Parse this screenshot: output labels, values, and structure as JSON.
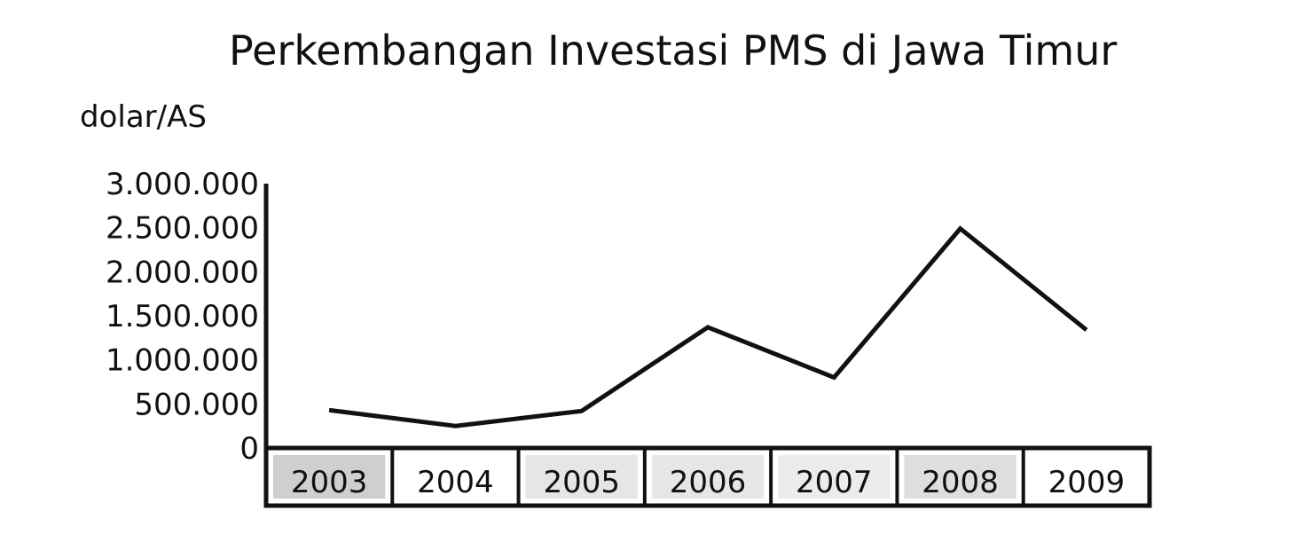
{
  "chart_data": {
    "type": "line",
    "title": "Perkembangan Investasi PMS di Jawa Timur",
    "ylabel": "dolar/AS",
    "xlabel": "",
    "categories": [
      "2003",
      "2004",
      "2005",
      "2006",
      "2007",
      "2008",
      "2009"
    ],
    "values": [
      430000,
      250000,
      420000,
      1370000,
      800000,
      2490000,
      1340000
    ],
    "ylim": [
      0,
      3000000
    ],
    "yticks": [
      0,
      500000,
      1000000,
      1500000,
      2000000,
      2500000,
      3000000
    ],
    "ytick_labels": [
      "0",
      "500.000",
      "1.000.000",
      "1.500.000",
      "2.000.000",
      "2.500.000",
      "3.000.000"
    ],
    "category_fills": [
      "#cfcfcf",
      "#ffffff",
      "#e6e6e6",
      "#e6e6e6",
      "#ececec",
      "#dedede",
      "#ffffff"
    ],
    "line_color": "#111111",
    "grid": false,
    "legend": "none"
  }
}
